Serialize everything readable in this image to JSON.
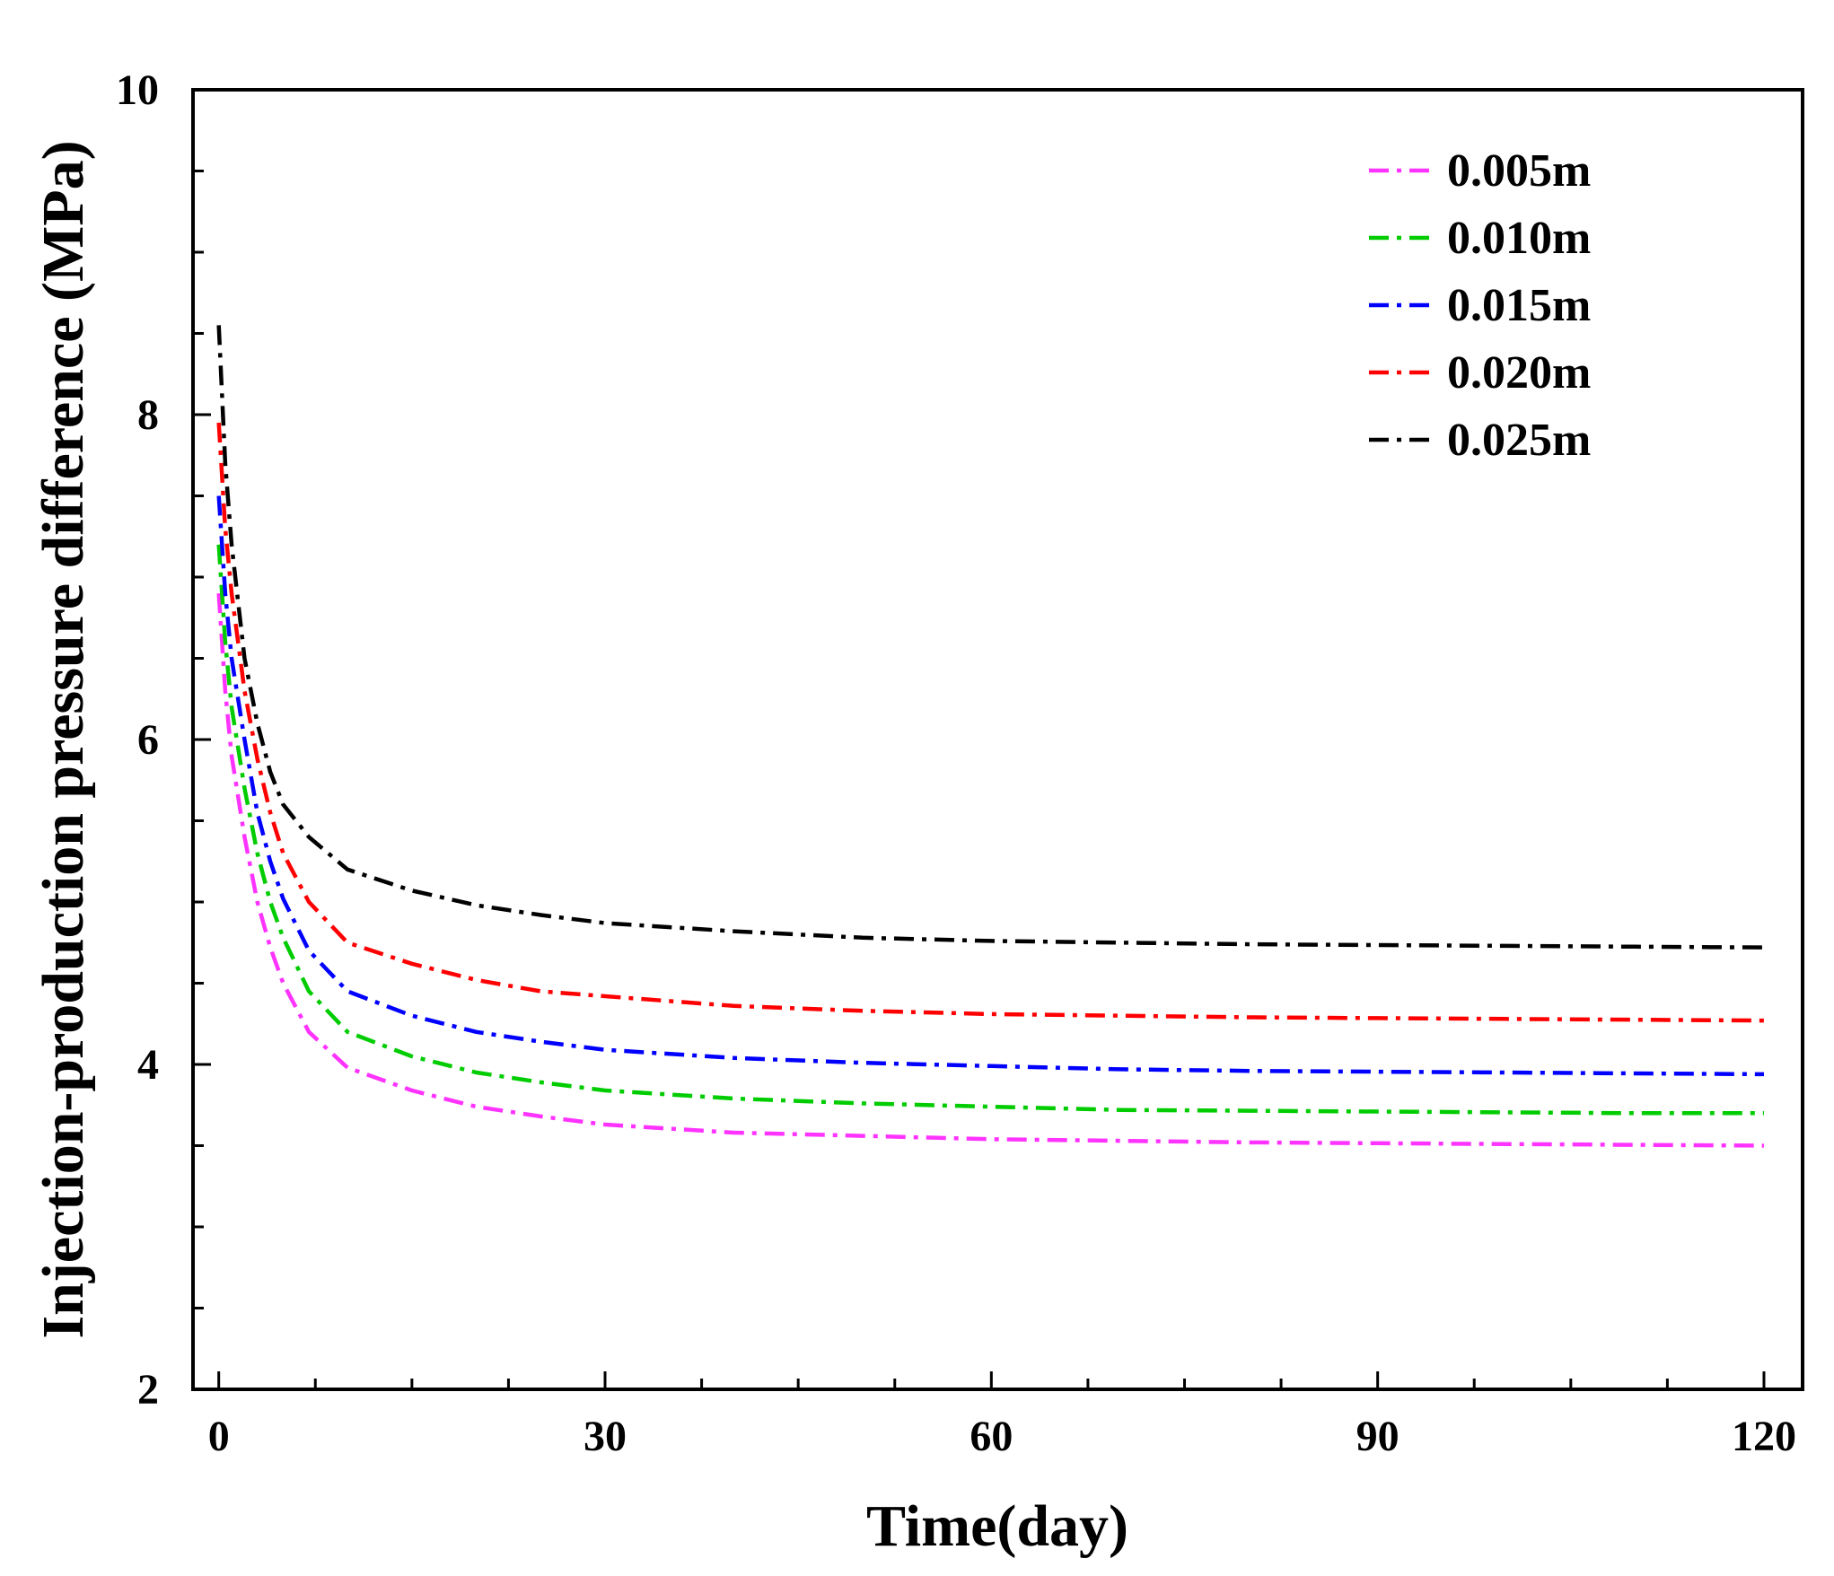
{
  "chart_data": {
    "type": "line",
    "title": "",
    "xlabel": "Time(day)",
    "ylabel": "Injection-production pressure difference (MPa)",
    "xlim": [
      -2,
      123
    ],
    "ylim": [
      2,
      10
    ],
    "xticks": [
      0,
      30,
      60,
      90,
      120
    ],
    "xtick_labels": [
      "0",
      "30",
      "60",
      "90",
      "120"
    ],
    "yticks": [
      2,
      4,
      6,
      8,
      10
    ],
    "ytick_labels": [
      "2",
      "4",
      "6",
      "8",
      "10"
    ],
    "grid": false,
    "legend_position": "top-right",
    "line_style": "dash-dot",
    "x": [
      0,
      0.5,
      1,
      2,
      3,
      4,
      5,
      7,
      10,
      15,
      20,
      25,
      30,
      40,
      50,
      60,
      70,
      80,
      90,
      100,
      110,
      120
    ],
    "series": [
      {
        "name": "0.005m",
        "color": "#ff33ff",
        "values": [
          6.9,
          6.3,
          5.9,
          5.4,
          5.0,
          4.72,
          4.5,
          4.2,
          3.98,
          3.84,
          3.74,
          3.68,
          3.63,
          3.58,
          3.56,
          3.54,
          3.53,
          3.52,
          3.515,
          3.51,
          3.505,
          3.5
        ]
      },
      {
        "name": "0.010m",
        "color": "#00cc00",
        "values": [
          7.2,
          6.6,
          6.2,
          5.7,
          5.3,
          5.0,
          4.78,
          4.45,
          4.2,
          4.05,
          3.95,
          3.89,
          3.84,
          3.79,
          3.76,
          3.74,
          3.72,
          3.715,
          3.71,
          3.705,
          3.7,
          3.7
        ]
      },
      {
        "name": "0.015m",
        "color": "#0000ff",
        "values": [
          7.5,
          6.9,
          6.5,
          6.0,
          5.55,
          5.25,
          5.02,
          4.7,
          4.45,
          4.3,
          4.2,
          4.14,
          4.09,
          4.04,
          4.01,
          3.99,
          3.97,
          3.96,
          3.955,
          3.95,
          3.945,
          3.94
        ]
      },
      {
        "name": "0.020m",
        "color": "#ff0000",
        "values": [
          7.95,
          7.3,
          6.9,
          6.3,
          5.88,
          5.55,
          5.3,
          5.0,
          4.75,
          4.62,
          4.52,
          4.45,
          4.42,
          4.36,
          4.33,
          4.31,
          4.3,
          4.29,
          4.285,
          4.28,
          4.275,
          4.27
        ]
      },
      {
        "name": "0.025m",
        "color": "#000000",
        "values": [
          8.55,
          7.7,
          7.2,
          6.5,
          6.1,
          5.8,
          5.6,
          5.4,
          5.2,
          5.07,
          4.98,
          4.92,
          4.87,
          4.82,
          4.78,
          4.76,
          4.75,
          4.74,
          4.735,
          4.73,
          4.725,
          4.72
        ]
      }
    ]
  }
}
